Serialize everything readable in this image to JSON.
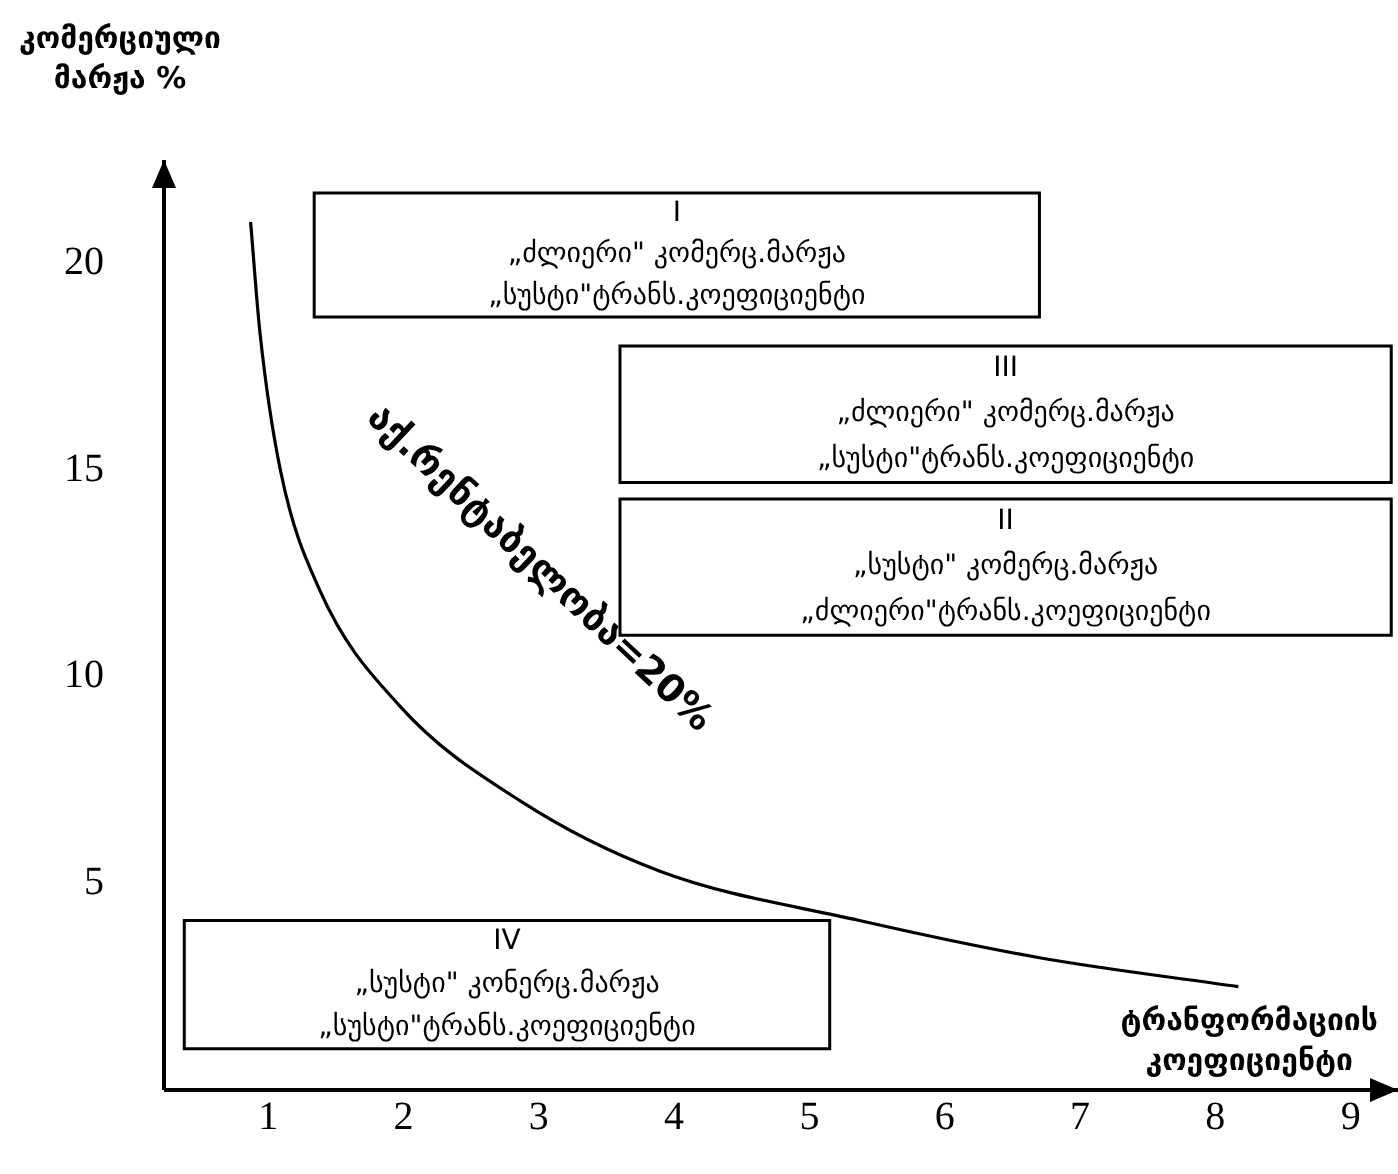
{
  "chart_data": {
    "type": "line",
    "xlabel": "ტრანფორმაციის\nკოეფიციენტი",
    "ylabel": "კომერციული\nმარჟა %",
    "x": [
      0.87,
      0.94,
      1.09,
      1.38,
      1.97,
      2.86,
      3.89,
      5.37,
      6.7,
      8.17
    ],
    "series": [
      {
        "name": "აქ.რენტაბელობა=20%",
        "color": "#000000",
        "values": [
          21.0,
          18.3,
          15.0,
          12.1,
          9.3,
          7.0,
          5.3,
          4.1,
          3.2,
          2.5
        ]
      }
    ],
    "xlim": [
      0.23,
      9.35
    ],
    "ylim": [
      0,
      22.5
    ],
    "xticks": [
      1,
      2,
      3,
      4,
      5,
      6,
      7,
      8,
      9
    ],
    "yticks": [
      5,
      10,
      15,
      20
    ],
    "annotations": [
      "I\n„ძლიერი\" კომერც.მარჟა\n„სუსტი\"ტრანს.კოეფიციენტი",
      "III\n„ძლიერი\" კომერც.მარჟა\n„სუსტი\"ტრანს.კოეფიციენტი",
      "II\n„სუსტი\" კომერც.მარჟა\n„ძლიერი\"ტრანს.კოეფიციენტი",
      "IV\n„სუსტი\" კონერც.მარჟა\n„სუსტი\"ტრანს.კოეფიციენტი"
    ],
    "grid": false,
    "legend": false,
    "marker": "none",
    "line_style": "solid"
  }
}
